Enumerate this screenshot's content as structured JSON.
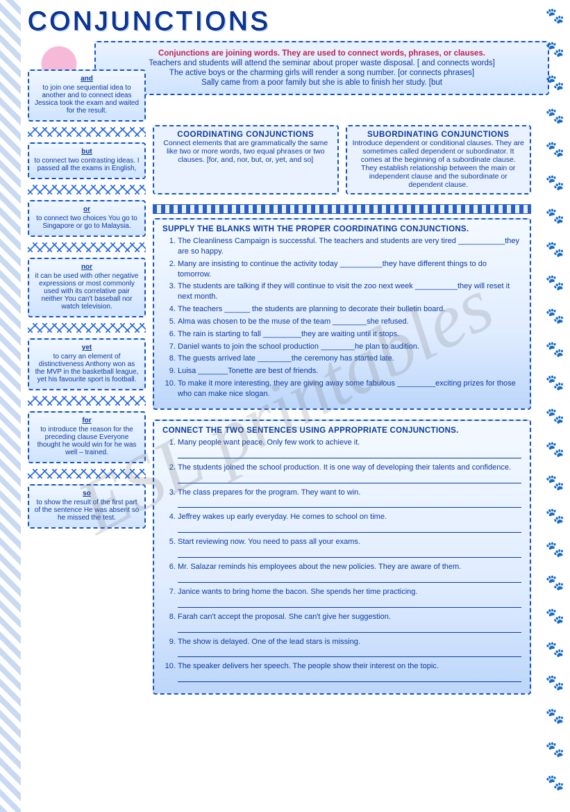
{
  "title": "CONJUNCTIONS",
  "watermark": "ESL printables",
  "intro": {
    "heading": "Conjunctions are joining words.  They are used to connect words, phrases, or clauses.",
    "lines": [
      "Teachers and students will attend the seminar about proper waste disposal. [ and  connects words]",
      "The active boys or the charming girls will render a song number.  [or connects phrases]",
      "Sally came from a poor family  but she is able to finish her study. [but"
    ]
  },
  "definitions": [
    {
      "term": "and",
      "body": "to join one sequential idea to another and to connect ideas Jessica took the exam and waited for the result."
    },
    {
      "term": "but",
      "body": "to connect two contrasting ideas. I passed all the exams in English,"
    },
    {
      "term": "or",
      "body": "to connect two choices You go to Singapore or go to Malaysia."
    },
    {
      "term": "nor",
      "body": "it can be used with other negative expressions or most commonly used with its correlative pair neither You can't baseball nor watch television."
    },
    {
      "term": "yet",
      "body": "to carry an element of distinctiveness Anthony won as the MVP in the basketball league, yet his favourite sport is football."
    },
    {
      "term": "for",
      "body": "to introduce the reason for the preceding clause Everyone thought he would win for he was well – trained."
    },
    {
      "term": "so",
      "body": "to show the result of the first part of the sentence He was absent so he missed the test."
    }
  ],
  "types": {
    "coord": {
      "title": "COORDINATING CONJUNCTIONS",
      "body": "Connect elements that are grammatically the same like two or more words, two equal phrases or two clauses. [for, and, nor, but, or, yet, and so]"
    },
    "subord": {
      "title": "SUBORDINATING CONJUNCTIONS",
      "body": "Introduce dependent or conditional clauses.  They are sometimes called dependent or subordinator.  It comes at the beginning of a subordinate clause.  They establish relationship between the main or independent clause and the subordinate or dependent clause."
    }
  },
  "ex1": {
    "heading": "SUPPLY THE BLANKS WITH THE PROPER COORDINATING CONJUNCTIONS.",
    "items": [
      "The Cleanliness Campaign is successful. The teachers and students are very tired ___________they are so happy.",
      "Many are insisting to continue the activity today __________they have different things to do tomorrow.",
      "The students are talking if they will continue to visit the zoo next week __________they will reset it next month.",
      "The teachers ______ the students are planning to decorate their bulletin board.",
      "Alma was chosen to be the muse of the team ________she refused.",
      "The rain is starting to fall _________they are waiting until it stops.",
      "Daniel wants to join the school production ________he plan to audition.",
      "The guests arrived late ________the ceremony has started late.",
      "Luisa _______Tonette are best of friends.",
      "To make it more interesting, they are giving away some fabulous _________exciting prizes for those who can make nice slogan."
    ]
  },
  "ex2": {
    "heading": "CONNECT THE TWO SENTENCES USING APPROPRIATE CONJUNCTIONS.",
    "items": [
      "Many people want peace. Only few work to achieve it.",
      "The students joined the school production. It is one way of developing their talents and confidence.",
      "The class prepares for the program. They want to win.",
      "Jeffrey wakes up early everyday. He comes to school on time.",
      "Start reviewing now. You need to pass all your exams.",
      "Mr. Salazar reminds his employees about the new policies. They are aware of them.",
      "Janice wants to bring home the bacon. She spends her time practicing.",
      "Farah can't accept the proposal.  She can't give her suggestion.",
      "The show is delayed.  One of the lead stars is missing.",
      "The speaker delivers her speech. The people show their interest on the topic."
    ]
  },
  "paws": {
    "colors": [
      "#3aa0e8",
      "#f06aa2",
      "#8cc63f",
      "#f4b942",
      "#6a4ec9",
      "#e94f3a",
      "#2aa89b"
    ],
    "glyph": "🐾"
  },
  "colors": {
    "primary": "#0b3a9e",
    "dash": "#1452c8",
    "bg_light": "#eaf3ff",
    "bg_mid": "#cfe3ff"
  }
}
